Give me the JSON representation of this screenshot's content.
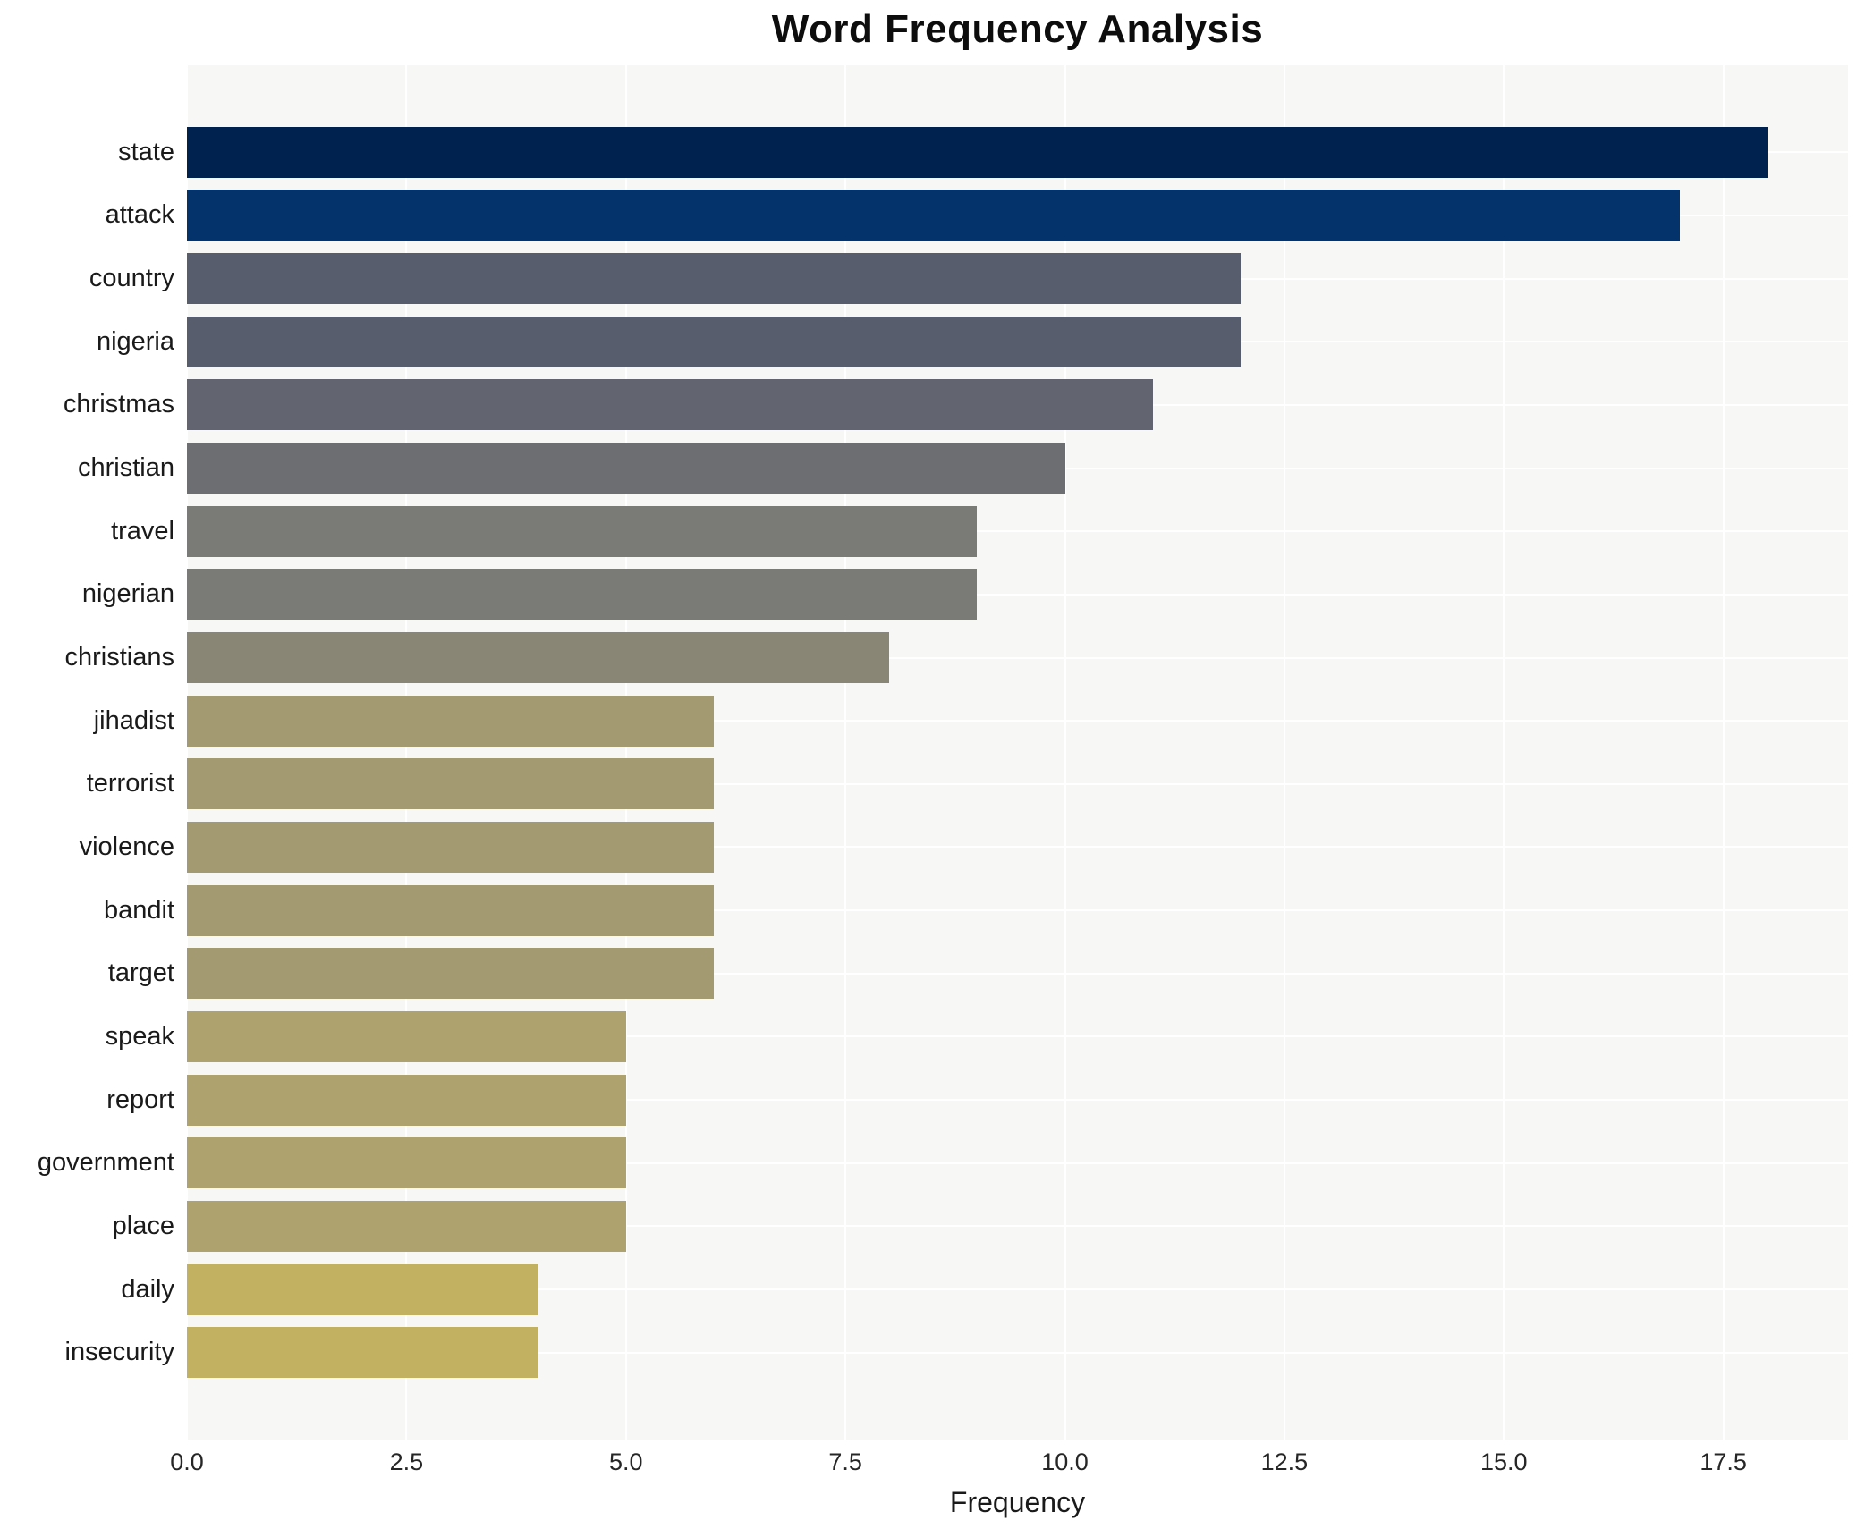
{
  "title": "Word Frequency Analysis",
  "xlabel": "Frequency",
  "chart_data": {
    "type": "bar",
    "orientation": "horizontal",
    "title": "Word Frequency Analysis",
    "xlabel": "Frequency",
    "ylabel": "",
    "categories": [
      "state",
      "attack",
      "country",
      "nigeria",
      "christmas",
      "christian",
      "travel",
      "nigerian",
      "christians",
      "jihadist",
      "terrorist",
      "violence",
      "bandit",
      "target",
      "speak",
      "report",
      "government",
      "place",
      "daily",
      "insecurity"
    ],
    "values": [
      18,
      17,
      12,
      12,
      11,
      10,
      9,
      9,
      8,
      6,
      6,
      6,
      6,
      6,
      5,
      5,
      5,
      5,
      4,
      4
    ],
    "bar_colors": [
      "#00224e",
      "#04326b",
      "#575d6d",
      "#575d6d",
      "#62656f",
      "#6d6e71",
      "#7a7a77",
      "#7a7a77",
      "#8a8676",
      "#a39a71",
      "#a39a71",
      "#a39a71",
      "#a39a71",
      "#a39a71",
      "#aea26e",
      "#aea26e",
      "#aea26e",
      "#aea26e",
      "#c1b160",
      "#c1b160"
    ],
    "xlim": [
      0,
      18.92
    ],
    "xticks": [
      0.0,
      2.5,
      5.0,
      7.5,
      10.0,
      12.5,
      15.0,
      17.5
    ],
    "xtick_labels": [
      "0.0",
      "2.5",
      "5.0",
      "7.5",
      "10.0",
      "12.5",
      "15.0",
      "17.5"
    ],
    "grid": true,
    "legend": false,
    "colors": {
      "plot_background": "#f7f7f5",
      "grid": "#ffffff",
      "text": "#1a1a1a",
      "tick_text": "#262626"
    }
  }
}
